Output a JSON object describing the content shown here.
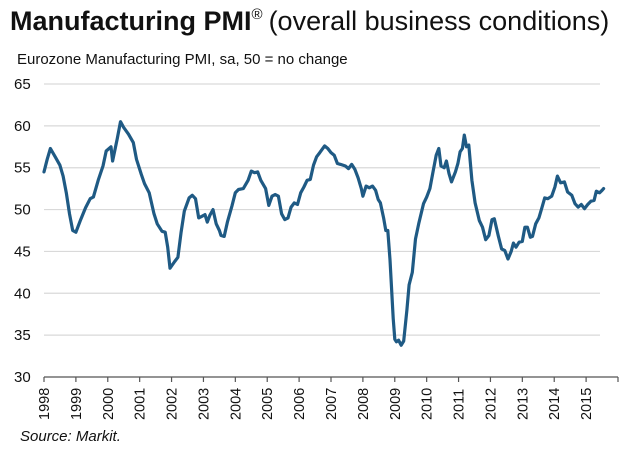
{
  "title": {
    "bold": "Manufacturing PMI",
    "mark": "®",
    "rest": "(overall business conditions)"
  },
  "subtitle": "Eurozone Manufacturing PMI, sa, 50 = no change",
  "source": "Source: Markit.",
  "colors": {
    "line": "#1f5a84",
    "grid": "#d9d9d9",
    "axis": "#555555"
  },
  "chart_data": {
    "type": "line",
    "title": "Manufacturing PMI (overall business conditions)",
    "ylabel": "Eurozone Manufacturing PMI, sa, 50 = no change",
    "xlabel": "",
    "ylim": [
      30,
      65
    ],
    "xlim": [
      1998,
      2016
    ],
    "yticks": [
      "30",
      "35",
      "40",
      "45",
      "50",
      "55",
      "60",
      "65"
    ],
    "xticks": [
      "1998",
      "1999",
      "2000",
      "2001",
      "2002",
      "2003",
      "2004",
      "2005",
      "2006",
      "2007",
      "2008",
      "2009",
      "2010",
      "2011",
      "2012",
      "2013",
      "2014",
      "2015"
    ],
    "grid": true,
    "series": [
      {
        "name": "Eurozone Manufacturing PMI",
        "points": [
          [
            1998.0,
            54.5
          ],
          [
            1998.1,
            56
          ],
          [
            1998.2,
            57.3
          ],
          [
            1998.35,
            56.3
          ],
          [
            1998.5,
            55.3
          ],
          [
            1998.6,
            54
          ],
          [
            1998.7,
            52
          ],
          [
            1998.8,
            49.5
          ],
          [
            1998.9,
            47.5
          ],
          [
            1999.0,
            47.3
          ],
          [
            1999.15,
            48.8
          ],
          [
            1999.3,
            50.2
          ],
          [
            1999.45,
            51.3
          ],
          [
            1999.55,
            51.5
          ],
          [
            1999.7,
            53.5
          ],
          [
            1999.85,
            55.2
          ],
          [
            1999.95,
            57
          ],
          [
            2000.1,
            57.5
          ],
          [
            2000.15,
            55.8
          ],
          [
            2000.3,
            58.5
          ],
          [
            2000.4,
            60.5
          ],
          [
            2000.5,
            59.8
          ],
          [
            2000.65,
            59
          ],
          [
            2000.8,
            58
          ],
          [
            2000.9,
            56
          ],
          [
            2001.05,
            54.2
          ],
          [
            2001.15,
            53.1
          ],
          [
            2001.3,
            52
          ],
          [
            2001.45,
            49.5
          ],
          [
            2001.55,
            48.3
          ],
          [
            2001.7,
            47.4
          ],
          [
            2001.8,
            47.3
          ],
          [
            2001.88,
            45.5
          ],
          [
            2001.95,
            43
          ],
          [
            2002.1,
            43.8
          ],
          [
            2002.2,
            44.3
          ],
          [
            2002.3,
            47.3
          ],
          [
            2002.4,
            49.8
          ],
          [
            2002.55,
            51.4
          ],
          [
            2002.65,
            51.7
          ],
          [
            2002.75,
            51.3
          ],
          [
            2002.85,
            49
          ],
          [
            2002.95,
            49.2
          ],
          [
            2003.05,
            49.4
          ],
          [
            2003.12,
            48.5
          ],
          [
            2003.2,
            49.3
          ],
          [
            2003.3,
            50
          ],
          [
            2003.4,
            48.3
          ],
          [
            2003.5,
            47.5
          ],
          [
            2003.55,
            46.9
          ],
          [
            2003.65,
            46.8
          ],
          [
            2003.75,
            48.5
          ],
          [
            2003.9,
            50.5
          ],
          [
            2004.0,
            52
          ],
          [
            2004.1,
            52.4
          ],
          [
            2004.25,
            52.5
          ],
          [
            2004.4,
            53.5
          ],
          [
            2004.5,
            54.6
          ],
          [
            2004.6,
            54.4
          ],
          [
            2004.7,
            54.5
          ],
          [
            2004.8,
            53.5
          ],
          [
            2004.95,
            52.5
          ],
          [
            2005.05,
            50.5
          ],
          [
            2005.15,
            51.6
          ],
          [
            2005.25,
            51.8
          ],
          [
            2005.35,
            51.6
          ],
          [
            2005.45,
            49.5
          ],
          [
            2005.55,
            48.8
          ],
          [
            2005.65,
            49
          ],
          [
            2005.75,
            50.3
          ],
          [
            2005.85,
            50.8
          ],
          [
            2005.95,
            50.6
          ],
          [
            2006.05,
            52
          ],
          [
            2006.15,
            52.7
          ],
          [
            2006.25,
            53.5
          ],
          [
            2006.35,
            53.6
          ],
          [
            2006.45,
            55.3
          ],
          [
            2006.55,
            56.3
          ],
          [
            2006.65,
            56.8
          ],
          [
            2006.8,
            57.6
          ],
          [
            2006.9,
            57.3
          ],
          [
            2007.0,
            56.8
          ],
          [
            2007.1,
            56.5
          ],
          [
            2007.2,
            55.5
          ],
          [
            2007.3,
            55.4
          ],
          [
            2007.45,
            55.2
          ],
          [
            2007.55,
            54.9
          ],
          [
            2007.65,
            55.4
          ],
          [
            2007.75,
            54.8
          ],
          [
            2007.85,
            53.8
          ],
          [
            2007.95,
            52.5
          ],
          [
            2008.0,
            51.6
          ],
          [
            2008.1,
            52.8
          ],
          [
            2008.2,
            52.6
          ],
          [
            2008.3,
            52.8
          ],
          [
            2008.4,
            52.3
          ],
          [
            2008.48,
            51.2
          ],
          [
            2008.55,
            50.8
          ],
          [
            2008.65,
            49
          ],
          [
            2008.72,
            47.5
          ],
          [
            2008.78,
            47.5
          ],
          [
            2008.85,
            44
          ],
          [
            2008.95,
            37
          ],
          [
            2009.0,
            34.5
          ],
          [
            2009.05,
            34.2
          ],
          [
            2009.12,
            34.4
          ],
          [
            2009.2,
            33.8
          ],
          [
            2009.28,
            34.3
          ],
          [
            2009.38,
            38
          ],
          [
            2009.45,
            41
          ],
          [
            2009.55,
            42.5
          ],
          [
            2009.65,
            46.5
          ],
          [
            2009.75,
            48.3
          ],
          [
            2009.9,
            50.7
          ],
          [
            2010.0,
            51.5
          ],
          [
            2010.1,
            52.5
          ],
          [
            2010.2,
            54.5
          ],
          [
            2010.3,
            56.5
          ],
          [
            2010.38,
            57.3
          ],
          [
            2010.45,
            55.2
          ],
          [
            2010.55,
            55
          ],
          [
            2010.62,
            55.8
          ],
          [
            2010.7,
            54.3
          ],
          [
            2010.78,
            53.3
          ],
          [
            2010.9,
            54.5
          ],
          [
            2010.98,
            55.5
          ],
          [
            2011.05,
            56.9
          ],
          [
            2011.12,
            57.3
          ],
          [
            2011.18,
            58.9
          ],
          [
            2011.25,
            57.5
          ],
          [
            2011.32,
            57.7
          ],
          [
            2011.42,
            53.5
          ],
          [
            2011.52,
            50.8
          ],
          [
            2011.65,
            48.7
          ],
          [
            2011.75,
            47.9
          ],
          [
            2011.85,
            46.4
          ],
          [
            2011.95,
            46.9
          ],
          [
            2012.05,
            48.8
          ],
          [
            2012.12,
            48.9
          ],
          [
            2012.25,
            46.8
          ],
          [
            2012.35,
            45.3
          ],
          [
            2012.45,
            45.1
          ],
          [
            2012.55,
            44.1
          ],
          [
            2012.65,
            45
          ],
          [
            2012.72,
            46
          ],
          [
            2012.8,
            45.5
          ],
          [
            2012.9,
            46.1
          ],
          [
            2013.0,
            46.2
          ],
          [
            2013.08,
            47.9
          ],
          [
            2013.16,
            47.9
          ],
          [
            2013.25,
            46.7
          ],
          [
            2013.32,
            46.8
          ],
          [
            2013.42,
            48.3
          ],
          [
            2013.52,
            49
          ],
          [
            2013.62,
            50.3
          ],
          [
            2013.7,
            51.4
          ],
          [
            2013.8,
            51.3
          ],
          [
            2013.92,
            51.6
          ],
          [
            2014.02,
            52.7
          ],
          [
            2014.1,
            54
          ],
          [
            2014.2,
            53.2
          ],
          [
            2014.32,
            53.3
          ],
          [
            2014.42,
            52.1
          ],
          [
            2014.55,
            51.7
          ],
          [
            2014.65,
            50.7
          ],
          [
            2014.75,
            50.3
          ],
          [
            2014.85,
            50.6
          ],
          [
            2014.95,
            50.1
          ],
          [
            2015.05,
            50.6
          ],
          [
            2015.15,
            51
          ],
          [
            2015.25,
            51.1
          ],
          [
            2015.32,
            52.2
          ],
          [
            2015.42,
            52
          ],
          [
            2015.5,
            52.3
          ],
          [
            2015.55,
            52.5
          ]
        ]
      }
    ],
    "annotations": [
      "Source: Markit."
    ]
  }
}
